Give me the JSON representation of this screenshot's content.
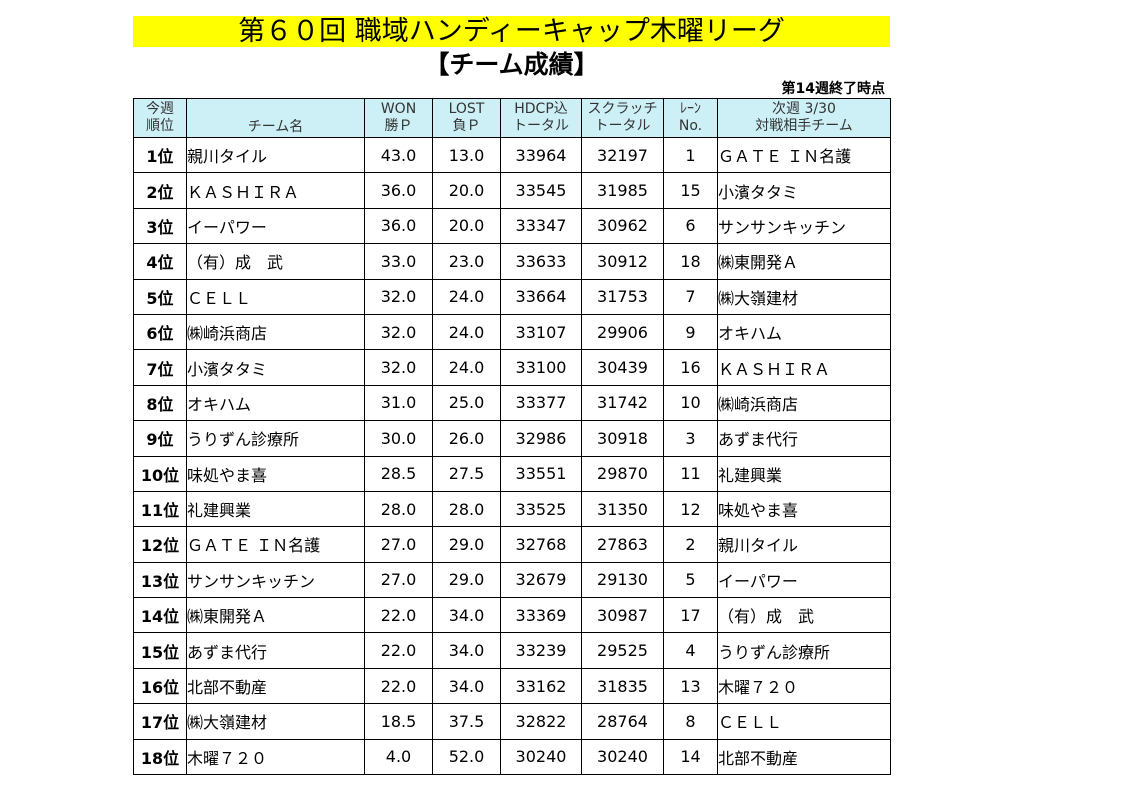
{
  "title": "第６０回 職域ハンディーキャップ木曜リーグ",
  "subtitle": "【チーム成績】",
  "status": "第14週終了時点",
  "headers": {
    "rank": [
      "今週",
      "順位"
    ],
    "team": "チーム名",
    "won": [
      "WON",
      "勝Ｐ"
    ],
    "lost": [
      "LOST",
      "負Ｐ"
    ],
    "hdcp": [
      "HDCP込",
      "トータル"
    ],
    "scratch": [
      "スクラッチ",
      "トータル"
    ],
    "lane": [
      "ﾚｰﾝ",
      "No."
    ],
    "next": [
      "次週 3/30",
      "対戦相手チーム"
    ]
  },
  "rows": [
    {
      "rank": "1位",
      "team": "親川タイル",
      "won": "43.0",
      "lost": "13.0",
      "hdcp": "33964",
      "scratch": "32197",
      "lane": "1",
      "opponent": "ＧＡＴＥ ＩＮ名護"
    },
    {
      "rank": "2位",
      "team": "ＫＡＳＨＩＲＡ",
      "won": "36.0",
      "lost": "20.0",
      "hdcp": "33545",
      "scratch": "31985",
      "lane": "15",
      "opponent": "小濱タタミ"
    },
    {
      "rank": "3位",
      "team": "イーパワー",
      "won": "36.0",
      "lost": "20.0",
      "hdcp": "33347",
      "scratch": "30962",
      "lane": "6",
      "opponent": "サンサンキッチン"
    },
    {
      "rank": "4位",
      "team": "（有）成　武",
      "won": "33.0",
      "lost": "23.0",
      "hdcp": "33633",
      "scratch": "30912",
      "lane": "18",
      "opponent": "㈱東開発Ａ"
    },
    {
      "rank": "5位",
      "team": "ＣＥＬＬ",
      "won": "32.0",
      "lost": "24.0",
      "hdcp": "33664",
      "scratch": "31753",
      "lane": "7",
      "opponent": "㈱大嶺建材"
    },
    {
      "rank": "6位",
      "team": "㈱崎浜商店",
      "won": "32.0",
      "lost": "24.0",
      "hdcp": "33107",
      "scratch": "29906",
      "lane": "9",
      "opponent": "オキハム"
    },
    {
      "rank": "7位",
      "team": "小濱タタミ",
      "won": "32.0",
      "lost": "24.0",
      "hdcp": "33100",
      "scratch": "30439",
      "lane": "16",
      "opponent": "ＫＡＳＨＩＲＡ"
    },
    {
      "rank": "8位",
      "team": "オキハム",
      "won": "31.0",
      "lost": "25.0",
      "hdcp": "33377",
      "scratch": "31742",
      "lane": "10",
      "opponent": "㈱崎浜商店"
    },
    {
      "rank": "9位",
      "team": "うりずん診療所",
      "won": "30.0",
      "lost": "26.0",
      "hdcp": "32986",
      "scratch": "30918",
      "lane": "3",
      "opponent": "あずま代行"
    },
    {
      "rank": "10位",
      "team": "味処やま喜",
      "won": "28.5",
      "lost": "27.5",
      "hdcp": "33551",
      "scratch": "29870",
      "lane": "11",
      "opponent": "礼建興業"
    },
    {
      "rank": "11位",
      "team": "礼建興業",
      "won": "28.0",
      "lost": "28.0",
      "hdcp": "33525",
      "scratch": "31350",
      "lane": "12",
      "opponent": "味処やま喜"
    },
    {
      "rank": "12位",
      "team": "ＧＡＴＥ ＩＮ名護",
      "won": "27.0",
      "lost": "29.0",
      "hdcp": "32768",
      "scratch": "27863",
      "lane": "2",
      "opponent": "親川タイル"
    },
    {
      "rank": "13位",
      "team": "サンサンキッチン",
      "won": "27.0",
      "lost": "29.0",
      "hdcp": "32679",
      "scratch": "29130",
      "lane": "5",
      "opponent": "イーパワー"
    },
    {
      "rank": "14位",
      "team": "㈱東開発Ａ",
      "won": "22.0",
      "lost": "34.0",
      "hdcp": "33369",
      "scratch": "30987",
      "lane": "17",
      "opponent": "（有）成　武"
    },
    {
      "rank": "15位",
      "team": "あずま代行",
      "won": "22.0",
      "lost": "34.0",
      "hdcp": "33239",
      "scratch": "29525",
      "lane": "4",
      "opponent": "うりずん診療所"
    },
    {
      "rank": "16位",
      "team": "北部不動産",
      "won": "22.0",
      "lost": "34.0",
      "hdcp": "33162",
      "scratch": "31835",
      "lane": "13",
      "opponent": "木曜７２０"
    },
    {
      "rank": "17位",
      "team": "㈱大嶺建材",
      "won": "18.5",
      "lost": "37.5",
      "hdcp": "32822",
      "scratch": "28764",
      "lane": "8",
      "opponent": "ＣＥＬＬ"
    },
    {
      "rank": "18位",
      "team": "木曜７２０",
      "won": "4.0",
      "lost": "52.0",
      "hdcp": "30240",
      "scratch": "30240",
      "lane": "14",
      "opponent": "北部不動産"
    }
  ],
  "colors": {
    "title_bg": "#ffff00",
    "header_bg": "#cdf0f7"
  }
}
